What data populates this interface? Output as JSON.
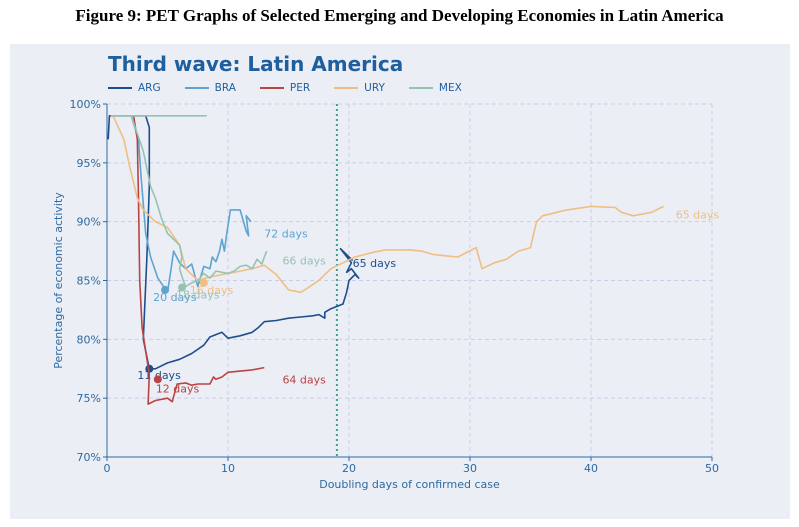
{
  "caption": "Figure 9: PET Graphs of Selected Emerging and Developing Economies in Latin America",
  "colors": {
    "ARG": "#1f4e8c",
    "BRA": "#5ea4d0",
    "PER": "#b94444",
    "URY": "#efbe82",
    "MEX": "#96c3b0",
    "axis_text": "#2c6aa0",
    "grid": "#c9cde6",
    "vline": "#3f9f95"
  },
  "chart_data": {
    "type": "line",
    "title": "Third wave: Latin America",
    "xlabel": "Doubling days of confirmed case",
    "ylabel": "Percentage of economic activity",
    "xlim": [
      0,
      50
    ],
    "ylim": [
      70,
      100
    ],
    "xticks": [
      0,
      10,
      20,
      30,
      40,
      50
    ],
    "yticks": [
      70,
      75,
      80,
      85,
      90,
      95,
      100
    ],
    "ytick_labels": [
      "70%",
      "75%",
      "80%",
      "85%",
      "90%",
      "95%",
      "100%"
    ],
    "grid": true,
    "legend_position": "top-left",
    "vertical_line_x": 19,
    "series": [
      {
        "name": "ARG",
        "points": [
          [
            0.1,
            97
          ],
          [
            0.2,
            99
          ],
          [
            3.2,
            99
          ],
          [
            3.5,
            98
          ],
          [
            3.5,
            93
          ],
          [
            3.3,
            87
          ],
          [
            3.0,
            80
          ],
          [
            3.5,
            77.5
          ],
          [
            4,
            77.5
          ],
          [
            5,
            78
          ],
          [
            6,
            78.3
          ],
          [
            7,
            78.8
          ],
          [
            8,
            79.5
          ],
          [
            8.5,
            80.2
          ],
          [
            9.5,
            80.6
          ],
          [
            10,
            80.1
          ],
          [
            11,
            80.3
          ],
          [
            12,
            80.6
          ],
          [
            12.5,
            81
          ],
          [
            13,
            81.5
          ],
          [
            14,
            81.6
          ],
          [
            15,
            81.8
          ],
          [
            16,
            81.9
          ],
          [
            17,
            82
          ],
          [
            17.5,
            82.1
          ],
          [
            18,
            81.8
          ],
          [
            18,
            82.3
          ],
          [
            18.5,
            82.6
          ],
          [
            19.5,
            83
          ],
          [
            19.8,
            84
          ],
          [
            20,
            85
          ],
          [
            20.5,
            85.5
          ],
          [
            20.8,
            85.2
          ],
          [
            20.2,
            86
          ],
          [
            19.8,
            85.7
          ],
          [
            20.2,
            86.5
          ],
          [
            19.3,
            87.7
          ],
          [
            20.3,
            86.7
          ]
        ],
        "marker": [
          3.5,
          77.5
        ],
        "annotation_start": "11 days",
        "annotation_end": "65 days",
        "annotation_end_pos": [
          20.3,
          86.5
        ]
      },
      {
        "name": "BRA",
        "points": [
          [
            2,
            99
          ],
          [
            2.6,
            97
          ],
          [
            2.8,
            94
          ],
          [
            3.2,
            89
          ],
          [
            3.6,
            87
          ],
          [
            4.2,
            85.2
          ],
          [
            5,
            84
          ],
          [
            5.3,
            86
          ],
          [
            5.5,
            87.5
          ],
          [
            6,
            86.5
          ],
          [
            6.5,
            86
          ],
          [
            7,
            86.4
          ],
          [
            7.5,
            84.5
          ],
          [
            8,
            86.2
          ],
          [
            8.5,
            86
          ],
          [
            8.7,
            87
          ],
          [
            9,
            86.6
          ],
          [
            9.3,
            87.5
          ],
          [
            9.5,
            88.5
          ],
          [
            9.7,
            87.5
          ],
          [
            9.9,
            89
          ],
          [
            10.2,
            91
          ],
          [
            11,
            91
          ],
          [
            11.2,
            90.3
          ],
          [
            11.5,
            89.2
          ],
          [
            11.7,
            88.8
          ],
          [
            11.5,
            90.5
          ],
          [
            11.9,
            90
          ]
        ],
        "marker": [
          4.8,
          84.2
        ],
        "annotation_start": "20 days",
        "annotation_end": "72 days",
        "annotation_end_pos": [
          13,
          89
        ]
      },
      {
        "name": "PER",
        "points": [
          [
            2.2,
            99
          ],
          [
            2.5,
            97
          ],
          [
            2.6,
            92
          ],
          [
            2.7,
            85
          ],
          [
            2.9,
            81
          ],
          [
            3.2,
            79
          ],
          [
            3.5,
            77
          ],
          [
            3.4,
            74.5
          ],
          [
            4,
            74.8
          ],
          [
            5,
            75
          ],
          [
            5.4,
            74.7
          ],
          [
            5.6,
            75.5
          ],
          [
            5.8,
            76.2
          ],
          [
            6.5,
            76.3
          ],
          [
            7,
            76.1
          ],
          [
            7.5,
            76.2
          ],
          [
            8,
            76.2
          ],
          [
            8.5,
            76.2
          ],
          [
            8.8,
            76.8
          ],
          [
            9,
            76.6
          ],
          [
            9.5,
            76.8
          ],
          [
            10,
            77.2
          ],
          [
            11,
            77.3
          ],
          [
            12,
            77.4
          ],
          [
            13,
            77.6
          ]
        ],
        "marker": [
          4.2,
          76.6
        ],
        "annotation_start": "12 days",
        "annotation_end": "64 days",
        "annotation_end_pos": [
          14.5,
          76.6
        ]
      },
      {
        "name": "URY",
        "points": [
          [
            0.5,
            99
          ],
          [
            1.4,
            97
          ],
          [
            1.8,
            95
          ],
          [
            2.5,
            92
          ],
          [
            3,
            91
          ],
          [
            4,
            90
          ],
          [
            5,
            89.5
          ],
          [
            6,
            88
          ],
          [
            6.5,
            86
          ],
          [
            7.5,
            85
          ],
          [
            8.5,
            85.3
          ],
          [
            9.5,
            85.5
          ],
          [
            11,
            85.8
          ],
          [
            12,
            86
          ],
          [
            13,
            86.3
          ],
          [
            14,
            85.5
          ],
          [
            15,
            84.2
          ],
          [
            16,
            84
          ],
          [
            16.5,
            84.3
          ],
          [
            17.5,
            85
          ],
          [
            18.5,
            86
          ],
          [
            19.5,
            86.5
          ],
          [
            20.5,
            87
          ],
          [
            22,
            87.4
          ],
          [
            23,
            87.6
          ],
          [
            25,
            87.6
          ],
          [
            26,
            87.5
          ],
          [
            27,
            87.2
          ],
          [
            28,
            87.1
          ],
          [
            29,
            87
          ],
          [
            30.5,
            87.8
          ],
          [
            31,
            86
          ],
          [
            32,
            86.5
          ],
          [
            33,
            86.8
          ],
          [
            34,
            87.5
          ],
          [
            35,
            87.8
          ],
          [
            35.5,
            90
          ],
          [
            36,
            90.5
          ],
          [
            38,
            91
          ],
          [
            40,
            91.3
          ],
          [
            42,
            91.2
          ],
          [
            42.5,
            90.8
          ],
          [
            43.5,
            90.5
          ],
          [
            45,
            90.8
          ],
          [
            46,
            91.3
          ]
        ],
        "marker": [
          8,
          84.8
        ],
        "annotation_start": "16 days",
        "annotation_end": "65 days",
        "annotation_end_pos": [
          47,
          90.6
        ]
      },
      {
        "name": "MEX",
        "points": [
          [
            0.3,
            99
          ],
          [
            8.2,
            99
          ],
          [
            2,
            99
          ],
          [
            3,
            96
          ],
          [
            3.2,
            95
          ],
          [
            3.6,
            93
          ],
          [
            4,
            92
          ],
          [
            4.5,
            90.3
          ],
          [
            5,
            89
          ],
          [
            5.5,
            88.5
          ],
          [
            6,
            88
          ],
          [
            6.2,
            87
          ],
          [
            6,
            86
          ],
          [
            6.3,
            85
          ],
          [
            6.5,
            84.5
          ],
          [
            7,
            84.8
          ],
          [
            7.5,
            85
          ],
          [
            8,
            85.6
          ],
          [
            8.5,
            85.2
          ],
          [
            9,
            85.8
          ],
          [
            10,
            85.6
          ],
          [
            10.5,
            85.8
          ],
          [
            11,
            86.2
          ],
          [
            11.5,
            86.3
          ],
          [
            12,
            86
          ],
          [
            12.4,
            86.8
          ],
          [
            12.8,
            86.4
          ],
          [
            13,
            87
          ],
          [
            13.2,
            87.5
          ]
        ],
        "marker": [
          6.2,
          84.4
        ],
        "annotation_start": "18 days",
        "annotation_end": "66 days",
        "annotation_end_pos": [
          14.5,
          86.7
        ]
      }
    ]
  }
}
